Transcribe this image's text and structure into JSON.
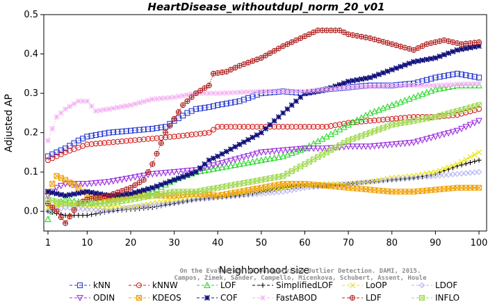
{
  "chart_data": {
    "type": "line",
    "title": "HeartDisease_withoutdupl_norm_20_v01",
    "xlabel": "Neighborhood size",
    "ylabel": "Adjusted AP",
    "xlim": [
      1,
      100
    ],
    "ylim": [
      -0.05,
      0.5
    ],
    "xticks": [
      1,
      10,
      20,
      30,
      40,
      50,
      60,
      70,
      80,
      90,
      100
    ],
    "yticks": [
      0.0,
      0.1,
      0.2,
      0.3,
      0.4,
      0.5
    ],
    "grid": false,
    "legend_position": "bottom",
    "credit": [
      "Campos, Zimek, Sander, Campello, Micenkova, Schubert, Assent, Houle",
      "On the Evaluation of Unsupervised Outlier Detection. DAMI, 2015."
    ],
    "series": [
      {
        "name": "kNN",
        "color": "#2a3ad0",
        "marker": "square",
        "points": [
          [
            1,
            0.14
          ],
          [
            3,
            0.15
          ],
          [
            5,
            0.16
          ],
          [
            8,
            0.18
          ],
          [
            10,
            0.19
          ],
          [
            15,
            0.2
          ],
          [
            20,
            0.205
          ],
          [
            25,
            0.21
          ],
          [
            28,
            0.215
          ],
          [
            30,
            0.23
          ],
          [
            33,
            0.25
          ],
          [
            35,
            0.26
          ],
          [
            38,
            0.265
          ],
          [
            40,
            0.27
          ],
          [
            45,
            0.28
          ],
          [
            50,
            0.3
          ],
          [
            55,
            0.305
          ],
          [
            60,
            0.3
          ],
          [
            65,
            0.31
          ],
          [
            70,
            0.315
          ],
          [
            75,
            0.32
          ],
          [
            80,
            0.32
          ],
          [
            85,
            0.325
          ],
          [
            90,
            0.34
          ],
          [
            95,
            0.35
          ],
          [
            100,
            0.34
          ]
        ]
      },
      {
        "name": "kNNW",
        "color": "#d22020",
        "marker": "circle",
        "points": [
          [
            1,
            0.13
          ],
          [
            5,
            0.15
          ],
          [
            10,
            0.17
          ],
          [
            15,
            0.175
          ],
          [
            20,
            0.18
          ],
          [
            25,
            0.185
          ],
          [
            30,
            0.19
          ],
          [
            38,
            0.2
          ],
          [
            40,
            0.215
          ],
          [
            45,
            0.215
          ],
          [
            50,
            0.215
          ],
          [
            55,
            0.215
          ],
          [
            60,
            0.215
          ],
          [
            65,
            0.215
          ],
          [
            70,
            0.225
          ],
          [
            75,
            0.23
          ],
          [
            80,
            0.235
          ],
          [
            85,
            0.24
          ],
          [
            90,
            0.24
          ],
          [
            95,
            0.245
          ],
          [
            100,
            0.26
          ]
        ]
      },
      {
        "name": "LOF",
        "color": "#2ad82a",
        "marker": "triangle-up",
        "points": [
          [
            1,
            -0.02
          ],
          [
            3,
            0.02
          ],
          [
            5,
            0.03
          ],
          [
            10,
            0.02
          ],
          [
            15,
            0.03
          ],
          [
            20,
            0.04
          ],
          [
            25,
            0.05
          ],
          [
            30,
            0.08
          ],
          [
            35,
            0.1
          ],
          [
            40,
            0.11
          ],
          [
            45,
            0.12
          ],
          [
            50,
            0.13
          ],
          [
            55,
            0.14
          ],
          [
            60,
            0.16
          ],
          [
            65,
            0.19
          ],
          [
            70,
            0.22
          ],
          [
            75,
            0.25
          ],
          [
            80,
            0.27
          ],
          [
            85,
            0.29
          ],
          [
            90,
            0.31
          ],
          [
            95,
            0.32
          ],
          [
            100,
            0.32
          ]
        ]
      },
      {
        "name": "SimplifiedLOF",
        "color": "#000000",
        "marker": "plus",
        "points": [
          [
            1,
            0.0
          ],
          [
            5,
            -0.01
          ],
          [
            10,
            -0.01
          ],
          [
            15,
            0.0
          ],
          [
            20,
            0.005
          ],
          [
            25,
            0.01
          ],
          [
            30,
            0.02
          ],
          [
            35,
            0.03
          ],
          [
            40,
            0.035
          ],
          [
            45,
            0.04
          ],
          [
            50,
            0.05
          ],
          [
            55,
            0.06
          ],
          [
            60,
            0.065
          ],
          [
            65,
            0.065
          ],
          [
            70,
            0.07
          ],
          [
            75,
            0.075
          ],
          [
            80,
            0.08
          ],
          [
            85,
            0.085
          ],
          [
            90,
            0.095
          ],
          [
            95,
            0.115
          ],
          [
            100,
            0.13
          ]
        ]
      },
      {
        "name": "LoOP",
        "color": "#e8e000",
        "marker": "cross",
        "points": [
          [
            1,
            0.01
          ],
          [
            5,
            0.02
          ],
          [
            10,
            0.01
          ],
          [
            15,
            0.01
          ],
          [
            20,
            0.01
          ],
          [
            25,
            0.02
          ],
          [
            30,
            0.03
          ],
          [
            35,
            0.035
          ],
          [
            40,
            0.04
          ],
          [
            45,
            0.045
          ],
          [
            50,
            0.05
          ],
          [
            55,
            0.06
          ],
          [
            60,
            0.065
          ],
          [
            65,
            0.07
          ],
          [
            70,
            0.07
          ],
          [
            75,
            0.075
          ],
          [
            80,
            0.085
          ],
          [
            85,
            0.09
          ],
          [
            90,
            0.1
          ],
          [
            95,
            0.12
          ],
          [
            100,
            0.15
          ]
        ]
      },
      {
        "name": "LDOF",
        "color": "#b4b4f0",
        "marker": "diamond",
        "points": [
          [
            1,
            0.0
          ],
          [
            5,
            0.01
          ],
          [
            10,
            0.005
          ],
          [
            15,
            0.0
          ],
          [
            20,
            0.01
          ],
          [
            25,
            0.015
          ],
          [
            30,
            0.02
          ],
          [
            35,
            0.03
          ],
          [
            40,
            0.035
          ],
          [
            45,
            0.04
          ],
          [
            50,
            0.045
          ],
          [
            55,
            0.05
          ],
          [
            60,
            0.06
          ],
          [
            65,
            0.065
          ],
          [
            70,
            0.07
          ],
          [
            75,
            0.075
          ],
          [
            80,
            0.08
          ],
          [
            85,
            0.085
          ],
          [
            90,
            0.09
          ],
          [
            95,
            0.095
          ],
          [
            100,
            0.1
          ]
        ]
      },
      {
        "name": "ODIN",
        "color": "#9b30e0",
        "marker": "triangle-down",
        "points": [
          [
            1,
            0.04
          ],
          [
            3,
            0.06
          ],
          [
            5,
            0.07
          ],
          [
            10,
            0.07
          ],
          [
            15,
            0.075
          ],
          [
            20,
            0.085
          ],
          [
            25,
            0.095
          ],
          [
            30,
            0.1
          ],
          [
            35,
            0.105
          ],
          [
            40,
            0.12
          ],
          [
            45,
            0.135
          ],
          [
            50,
            0.15
          ],
          [
            55,
            0.155
          ],
          [
            60,
            0.16
          ],
          [
            65,
            0.16
          ],
          [
            70,
            0.165
          ],
          [
            75,
            0.165
          ],
          [
            80,
            0.17
          ],
          [
            85,
            0.175
          ],
          [
            90,
            0.19
          ],
          [
            95,
            0.205
          ],
          [
            100,
            0.23
          ]
        ]
      },
      {
        "name": "KDEOS",
        "color": "#f0a000",
        "marker": "square-x",
        "points": [
          [
            1,
            0.05
          ],
          [
            3,
            0.09
          ],
          [
            5,
            0.08
          ],
          [
            8,
            0.06
          ],
          [
            10,
            0.04
          ],
          [
            15,
            0.03
          ],
          [
            20,
            0.04
          ],
          [
            25,
            0.04
          ],
          [
            30,
            0.04
          ],
          [
            35,
            0.045
          ],
          [
            40,
            0.04
          ],
          [
            45,
            0.05
          ],
          [
            50,
            0.06
          ],
          [
            55,
            0.07
          ],
          [
            60,
            0.07
          ],
          [
            65,
            0.065
          ],
          [
            70,
            0.06
          ],
          [
            75,
            0.055
          ],
          [
            80,
            0.05
          ],
          [
            85,
            0.05
          ],
          [
            90,
            0.055
          ],
          [
            95,
            0.06
          ],
          [
            100,
            0.06
          ]
        ]
      },
      {
        "name": "COF",
        "color": "#10107c",
        "marker": "star",
        "points": [
          [
            1,
            0.05
          ],
          [
            5,
            0.04
          ],
          [
            10,
            0.05
          ],
          [
            15,
            0.04
          ],
          [
            20,
            0.045
          ],
          [
            25,
            0.06
          ],
          [
            30,
            0.08
          ],
          [
            35,
            0.1
          ],
          [
            38,
            0.13
          ],
          [
            40,
            0.14
          ],
          [
            45,
            0.17
          ],
          [
            50,
            0.2
          ],
          [
            55,
            0.25
          ],
          [
            58,
            0.28
          ],
          [
            60,
            0.3
          ],
          [
            65,
            0.31
          ],
          [
            70,
            0.33
          ],
          [
            75,
            0.34
          ],
          [
            80,
            0.36
          ],
          [
            85,
            0.38
          ],
          [
            90,
            0.39
          ],
          [
            95,
            0.41
          ],
          [
            100,
            0.42
          ]
        ]
      },
      {
        "name": "FastABOD",
        "color": "#f4b2f4",
        "marker": "asterisk",
        "points": [
          [
            1,
            0.18
          ],
          [
            3,
            0.24
          ],
          [
            5,
            0.26
          ],
          [
            8,
            0.28
          ],
          [
            10,
            0.28
          ],
          [
            12,
            0.255
          ],
          [
            15,
            0.26
          ],
          [
            20,
            0.27
          ],
          [
            25,
            0.285
          ],
          [
            30,
            0.29
          ],
          [
            35,
            0.3
          ],
          [
            40,
            0.3
          ],
          [
            50,
            0.305
          ],
          [
            60,
            0.305
          ],
          [
            70,
            0.315
          ],
          [
            80,
            0.32
          ],
          [
            90,
            0.32
          ],
          [
            100,
            0.325
          ]
        ]
      },
      {
        "name": "LDF",
        "color": "#b02020",
        "marker": "circle-plus",
        "points": [
          [
            1,
            0.02
          ],
          [
            3,
            0.0
          ],
          [
            5,
            -0.03
          ],
          [
            8,
            0.02
          ],
          [
            10,
            0.03
          ],
          [
            15,
            0.04
          ],
          [
            20,
            0.06
          ],
          [
            23,
            0.08
          ],
          [
            25,
            0.12
          ],
          [
            28,
            0.2
          ],
          [
            32,
            0.27
          ],
          [
            35,
            0.3
          ],
          [
            38,
            0.32
          ],
          [
            39,
            0.35
          ],
          [
            42,
            0.355
          ],
          [
            45,
            0.37
          ],
          [
            50,
            0.39
          ],
          [
            55,
            0.42
          ],
          [
            60,
            0.445
          ],
          [
            63,
            0.46
          ],
          [
            68,
            0.46
          ],
          [
            70,
            0.45
          ],
          [
            75,
            0.44
          ],
          [
            80,
            0.425
          ],
          [
            85,
            0.41
          ],
          [
            88,
            0.425
          ],
          [
            92,
            0.435
          ],
          [
            96,
            0.425
          ],
          [
            100,
            0.43
          ]
        ]
      },
      {
        "name": "INFLO",
        "color": "#a0d850",
        "marker": "square-x",
        "points": [
          [
            1,
            0.03
          ],
          [
            5,
            0.02
          ],
          [
            10,
            0.02
          ],
          [
            15,
            0.02
          ],
          [
            20,
            0.03
          ],
          [
            25,
            0.04
          ],
          [
            30,
            0.05
          ],
          [
            35,
            0.05
          ],
          [
            40,
            0.06
          ],
          [
            45,
            0.07
          ],
          [
            50,
            0.08
          ],
          [
            55,
            0.09
          ],
          [
            60,
            0.12
          ],
          [
            65,
            0.15
          ],
          [
            70,
            0.18
          ],
          [
            75,
            0.2
          ],
          [
            80,
            0.22
          ],
          [
            85,
            0.23
          ],
          [
            90,
            0.24
          ],
          [
            95,
            0.255
          ],
          [
            100,
            0.27
          ]
        ]
      }
    ]
  }
}
